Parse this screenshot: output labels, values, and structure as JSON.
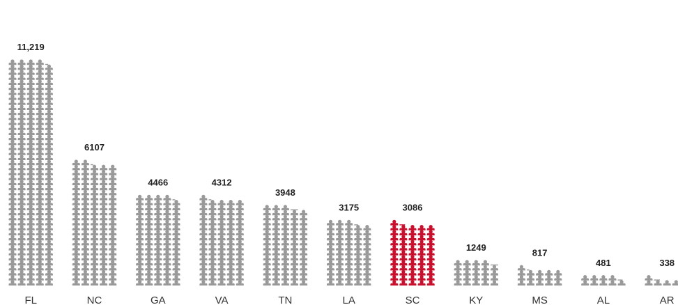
{
  "chart_data": {
    "type": "bar",
    "subtype": "pictograph",
    "icon": "person-icon",
    "title": "",
    "xlabel": "",
    "ylabel": "",
    "grid": false,
    "legend": "none",
    "categories": [
      "FL",
      "NC",
      "GA",
      "VA",
      "TN",
      "LA",
      "SC",
      "KY",
      "MS",
      "AL",
      "AR"
    ],
    "values": [
      11219,
      6107,
      4466,
      4312,
      3948,
      3175,
      3086,
      1249,
      817,
      481,
      338
    ],
    "value_labels": [
      "11,219",
      "6107",
      "4466",
      "4312",
      "3948",
      "3175",
      "3086",
      "1249",
      "817",
      "481",
      "338"
    ],
    "highlight_category": "SC",
    "colors": {
      "default": "#999999",
      "highlight": "#c8102e"
    }
  }
}
